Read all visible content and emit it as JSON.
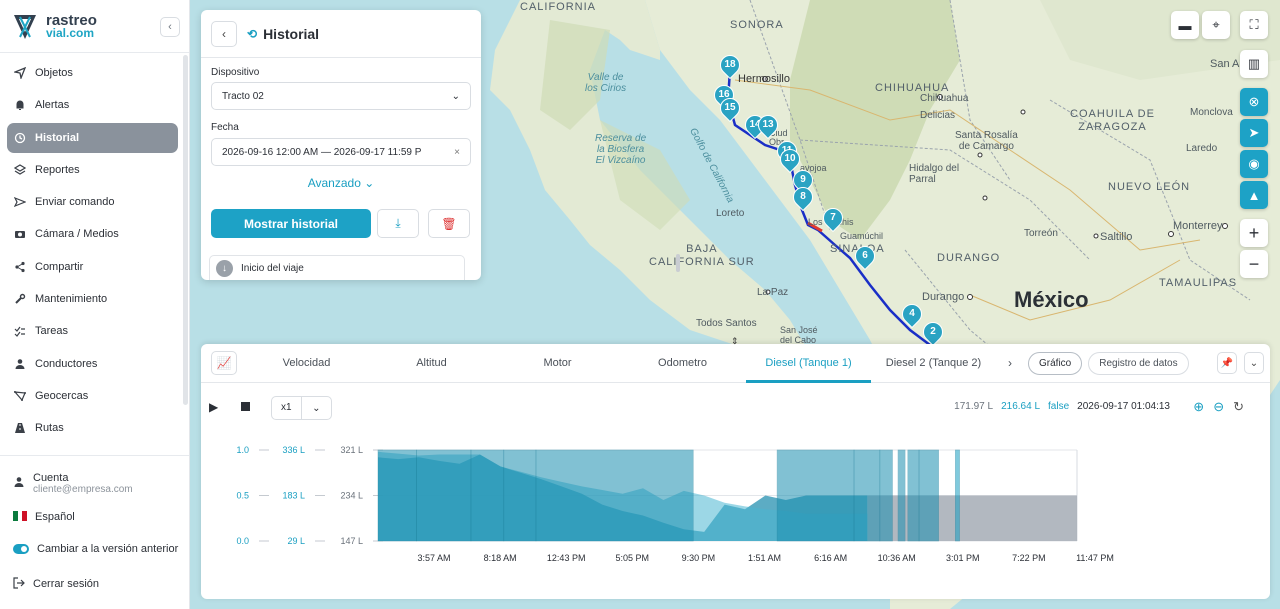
{
  "brand": {
    "line1": "rastreo",
    "line2": "vial.com"
  },
  "nav": {
    "items": [
      {
        "label": "Objetos",
        "icon": "location-arrow-icon"
      },
      {
        "label": "Alertas",
        "icon": "bell-icon"
      },
      {
        "label": "Historial",
        "icon": "history-icon",
        "active": true
      },
      {
        "label": "Reportes",
        "icon": "layers-icon"
      },
      {
        "label": "Enviar comando",
        "icon": "send-icon"
      },
      {
        "label": "Cámara / Medios",
        "icon": "camera-icon"
      },
      {
        "label": "Compartir",
        "icon": "share-icon"
      },
      {
        "label": "Mantenimiento",
        "icon": "wrench-icon"
      },
      {
        "label": "Tareas",
        "icon": "checklist-icon"
      },
      {
        "label": "Conductores",
        "icon": "person-icon"
      },
      {
        "label": "Geocercas",
        "icon": "geofence-icon"
      },
      {
        "label": "Rutas",
        "icon": "road-icon"
      }
    ]
  },
  "account": {
    "name": "Cuenta",
    "email": "cliente@empresa.com"
  },
  "language": "Español",
  "legacy_toggle": "Cambiar a la versión anterior",
  "logout": "Cerrar sesión",
  "history_panel": {
    "title": "Historial",
    "device_label": "Dispositivo",
    "device_value": "Tracto 02",
    "date_label": "Fecha",
    "date_value": "2026-09-16 12:00 AM — 2026-09-17 11:59 P",
    "advanced": "Avanzado",
    "show_button": "Mostrar historial",
    "trip_start": "Inicio del viaje"
  },
  "map": {
    "labels": {
      "california": "CALIFORNIA",
      "sonora": "SONORA",
      "chihuahua_state": "CHIHUAHUA",
      "hermosillo": "Hermosillo",
      "chihuahua_city": "Chihuahua",
      "san_ant": "San A",
      "valle_cirios": "Valle de\nlos Cirios",
      "reserva": "Reserva de\nla Biosfera\nEl Vizcaíno",
      "golfo": "Golfo de California",
      "coahuila": "COAHUILA DE\nZARAGOZA",
      "monclova": "Monclova",
      "santa_rosalia": "Santa Rosalía\nde Camargo",
      "delicias": "Delicias",
      "hidalgo": "Hidalgo del\nParral",
      "laredo": "Laredo",
      "nuevo_leon": "NUEVO LEÓN",
      "torreon": "Torreón",
      "saltillo": "Saltillo",
      "monterrey": "Monterrey",
      "loreto": "Loreto",
      "baja": "BAJA\nCALIFORNIA SUR",
      "sinaloa": "SINALOA",
      "durango_state": "DURANGO",
      "la_paz": "La Paz",
      "durango_city": "Durango",
      "mexico": "México",
      "tamaulipas": "TAMAULIPAS",
      "todos_santos": "Todos Santos",
      "san_jose": "San José\ndel Cabo",
      "guamuchil": "Guamúchil",
      "los_mochis": "Los Mochis",
      "navojoa": "avojoa",
      "obregon": "Ciud\nObr"
    },
    "markers": [
      "18",
      "16",
      "15",
      "14",
      "13",
      "11",
      "10",
      "9",
      "8",
      "7",
      "6",
      "4",
      "2"
    ]
  },
  "chart_panel": {
    "tabs": [
      "Velocidad",
      "Altitud",
      "Motor",
      "Odometro",
      "Diesel (Tanque 1)",
      "Diesel 2 (Tanque 2)"
    ],
    "active_tab": "Diesel (Tanque 1)",
    "view_modes": [
      "Gráfico",
      "Registro de datos"
    ],
    "speed": "x1",
    "readout": {
      "value_a": "171.97 L",
      "value_b": "216.64 L",
      "flag": "false",
      "timestamp": "2026-09-17 01:04:13"
    }
  },
  "chart_data": {
    "type": "area",
    "x_ticks": [
      "3:57 AM",
      "8:18 AM",
      "12:43 PM",
      "5:05 PM",
      "9:30 PM",
      "1:51 AM",
      "6:16 AM",
      "10:36 AM",
      "3:01 PM",
      "7:22 PM",
      "11:47 PM"
    ],
    "y_axes": [
      {
        "ticks": [
          "1.0",
          "0.5",
          "0.0"
        ],
        "range": [
          0,
          1
        ]
      },
      {
        "ticks": [
          "336 L",
          "183 L",
          "29 L"
        ],
        "range": [
          29,
          336
        ]
      },
      {
        "ticks": [
          "321 L",
          "234 L",
          "147 L"
        ],
        "range": [
          147,
          321
        ]
      }
    ],
    "series": [
      {
        "values_norm": [
          0.92,
          0.9,
          0.92,
          0.88,
          0.85,
          0.95,
          0.82,
          0.75,
          0.68,
          0.6,
          0.52,
          0.4,
          0.33,
          0.28,
          0.2,
          0.13,
          0.1,
          0.4,
          0.35,
          0.5,
          0.45,
          0.5,
          0.5,
          0.5,
          0.5
        ]
      },
      {
        "values_norm": [
          0.98,
          0.96,
          0.94,
          0.95,
          0.95,
          0.95,
          0.82,
          0.76,
          0.7,
          0.65,
          0.6,
          0.56,
          0.52,
          0.58,
          0.45,
          0.55,
          0.5,
          0.42,
          0.38,
          0.35,
          0.33,
          0.3,
          0.3,
          0.3,
          0.3
        ]
      }
    ],
    "bands": [
      {
        "from": 0,
        "to": 0.055,
        "color": "#1b8fb0"
      },
      {
        "from": 0.055,
        "to": 0.133,
        "color": "#1b8fb0"
      },
      {
        "from": 0.133,
        "to": 0.18,
        "color": "#1b8fb0"
      },
      {
        "from": 0.18,
        "to": 0.226,
        "color": "#1b8fb0"
      },
      {
        "from": 0.226,
        "to": 0.451,
        "color": "#1b8fb0"
      },
      {
        "from": 0.571,
        "to": 0.681,
        "color": "#1b8fb0"
      },
      {
        "from": 0.681,
        "to": 0.718,
        "color": "#1b8fb0"
      },
      {
        "from": 0.718,
        "to": 0.736,
        "color": "#1b8fb0"
      },
      {
        "from": 0.744,
        "to": 0.754,
        "color": "#1b8fb0"
      },
      {
        "from": 0.758,
        "to": 0.774,
        "color": "#1b8fb0"
      },
      {
        "from": 0.774,
        "to": 0.802,
        "color": "#1b8fb0"
      },
      {
        "from": 0.826,
        "to": 0.832,
        "color": "#1a9fc2"
      }
    ]
  },
  "colors": {
    "accent": "#1da2c6",
    "active_nav": "#8a929c",
    "route": "#1a2fc7"
  }
}
